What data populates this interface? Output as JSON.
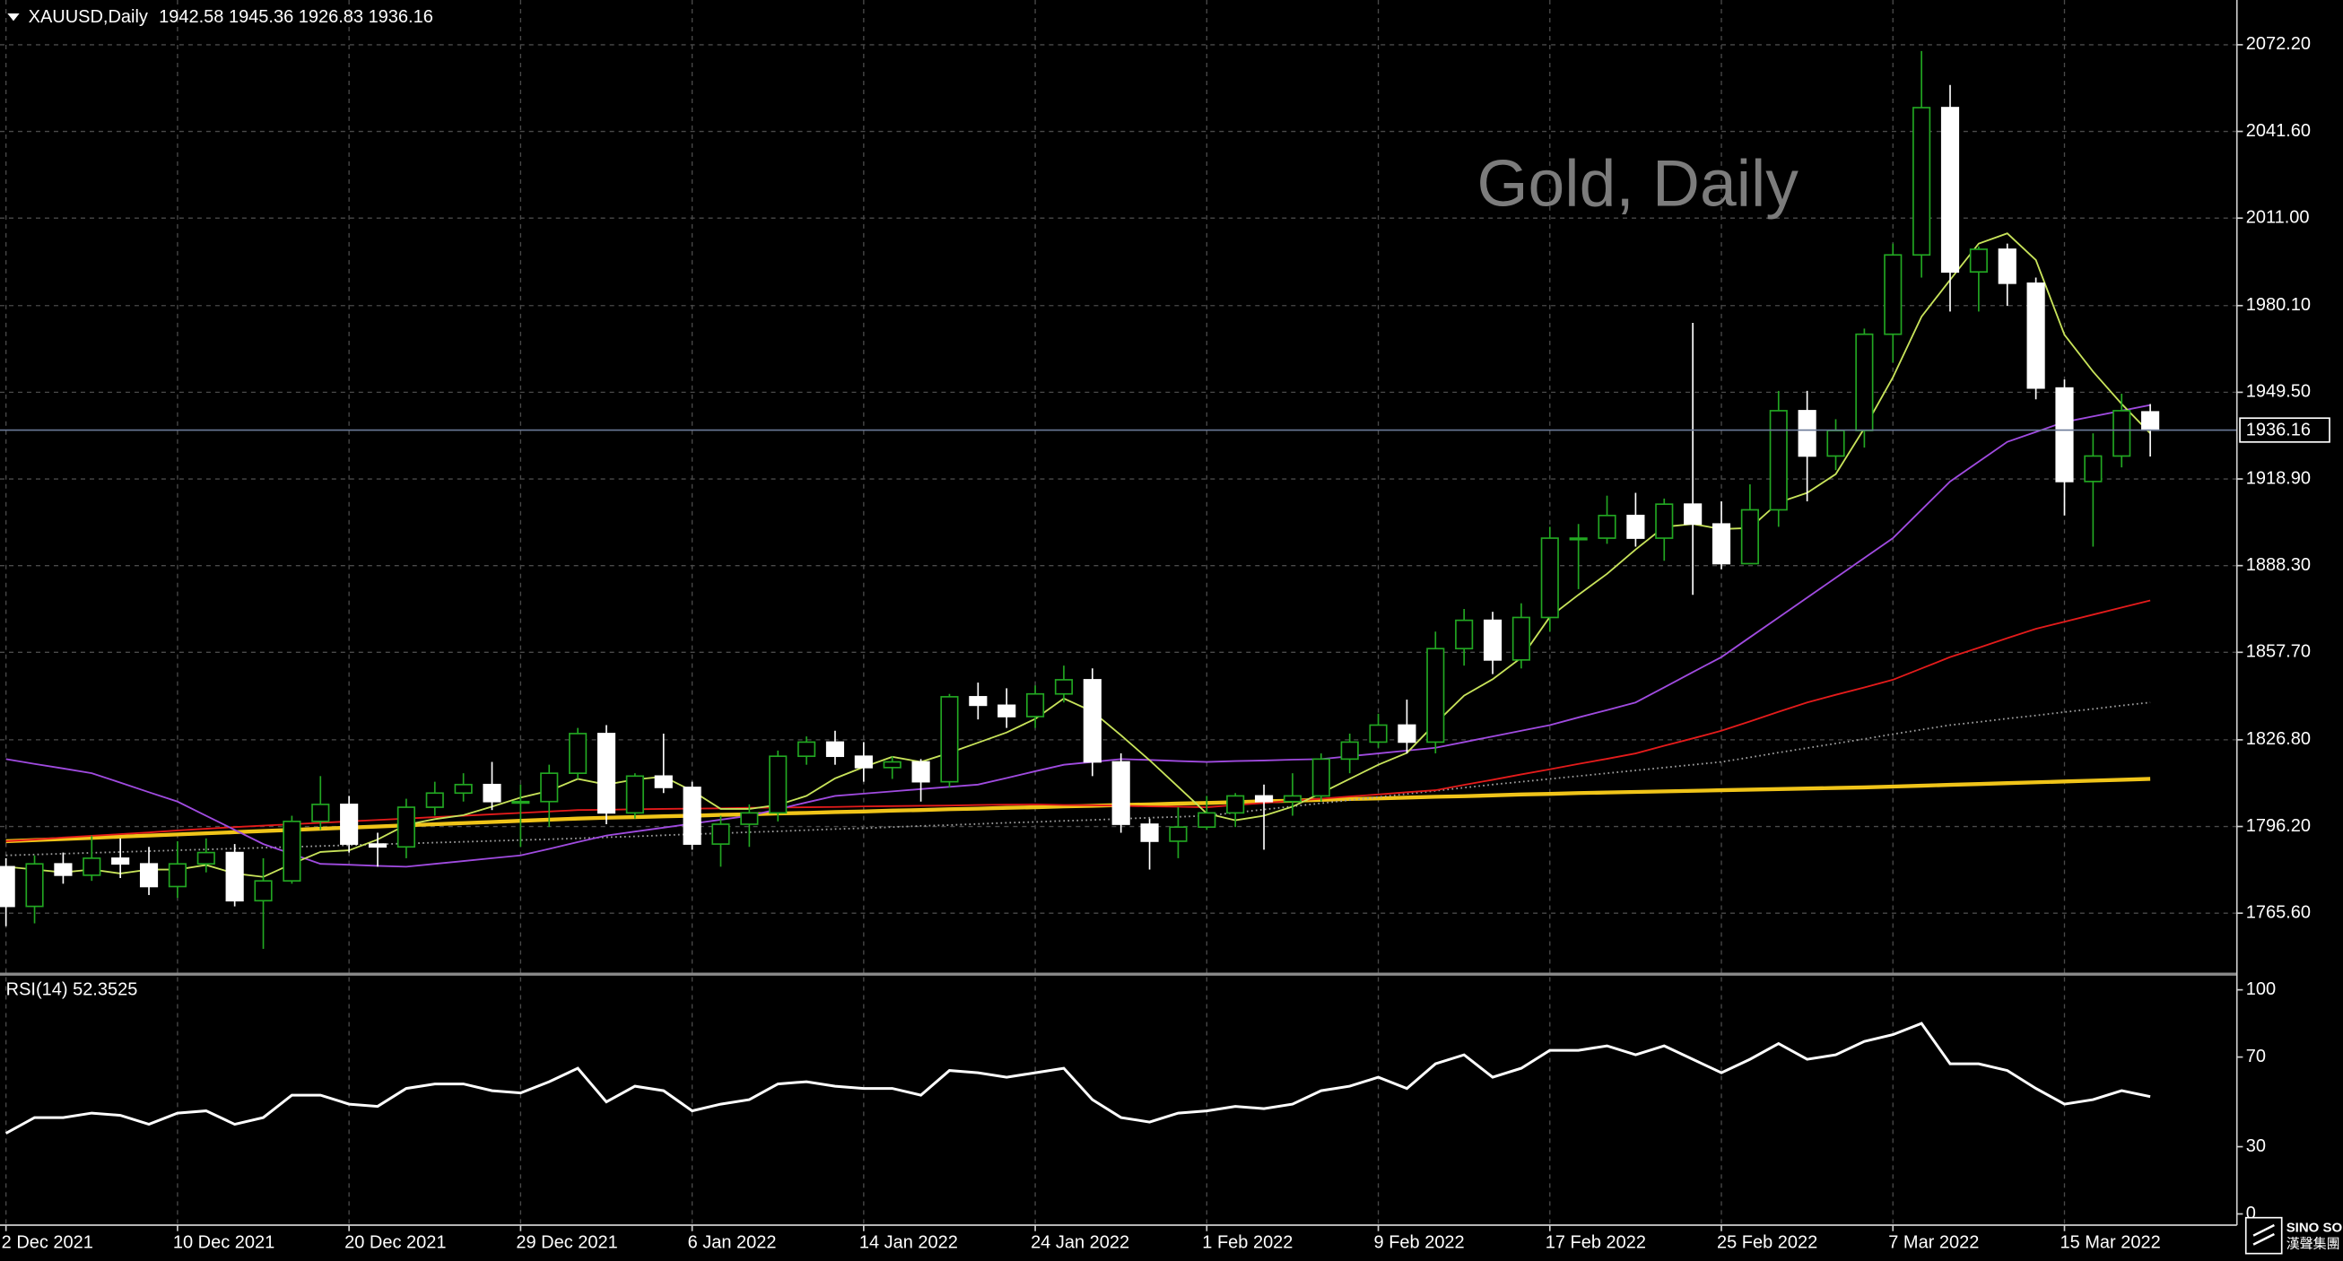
{
  "chart_data": [
    {
      "type": "candlestick",
      "title": "Gold, Daily",
      "symbol": "XAUUSD,Daily",
      "categories": [
        "2 Dec 2021",
        null,
        null,
        null,
        null,
        null,
        "10 Dec 2021",
        null,
        null,
        null,
        null,
        null,
        "20 Dec 2021",
        null,
        null,
        null,
        null,
        null,
        "29 Dec 2021",
        null,
        null,
        null,
        null,
        null,
        "6 Jan 2022",
        null,
        null,
        null,
        null,
        null,
        "14 Jan 2022",
        null,
        null,
        null,
        null,
        null,
        "24 Jan 2022",
        null,
        null,
        null,
        null,
        null,
        "1 Feb 2022",
        null,
        null,
        null,
        null,
        null,
        "9 Feb 2022",
        null,
        null,
        null,
        null,
        null,
        "17 Feb 2022",
        null,
        null,
        null,
        null,
        null,
        "25 Feb 2022",
        null,
        null,
        null,
        null,
        null,
        "7 Mar 2022",
        null,
        null,
        null,
        null,
        null,
        "15 Mar 2022",
        null,
        null,
        null
      ],
      "open": [
        1782,
        1768,
        1783,
        1779,
        1785,
        1783,
        1775,
        1783,
        1787,
        1770,
        1777,
        1798,
        1804,
        1790,
        1789,
        1803,
        1808,
        1811,
        1805,
        1805,
        1815,
        1829,
        1801,
        1814,
        1810,
        1790,
        1797,
        1801,
        1821,
        1826,
        1821,
        1817,
        1819,
        1812,
        1842,
        1839,
        1835,
        1843,
        1848,
        1819,
        1797,
        1791,
        1796,
        1801,
        1807,
        1805,
        1807,
        1820,
        1826,
        1832,
        1826,
        1859,
        1869,
        1855,
        1870,
        1898,
        1898,
        1906,
        1898,
        1910,
        1903,
        1889,
        1908,
        1943,
        1927,
        1936,
        1970,
        1998,
        2050,
        1992,
        2000,
        1988,
        1951,
        1918,
        1927,
        1942.58
      ],
      "high": [
        1785,
        1786,
        1787,
        1793,
        1792,
        1789,
        1791,
        1792,
        1790,
        1785,
        1800,
        1814,
        1807,
        1794,
        1806,
        1812,
        1815,
        1819,
        1811,
        1818,
        1831,
        1832,
        1815,
        1829,
        1812,
        1800,
        1804,
        1823,
        1828,
        1830,
        1826,
        1821,
        1820,
        1843,
        1847,
        1845,
        1846,
        1853,
        1852,
        1822,
        1799,
        1803,
        1807,
        1808,
        1811,
        1815,
        1822,
        1829,
        1836,
        1841,
        1865,
        1873,
        1872,
        1875,
        1902,
        1903,
        1913,
        1914,
        1912,
        1974,
        1911,
        1917,
        1950,
        1950,
        1940,
        1972,
        2002,
        2070,
        2058,
        2001,
        2002,
        1990,
        1954,
        1935,
        1949,
        1945.36
      ],
      "low": [
        1761,
        1762,
        1776,
        1777,
        1778,
        1772,
        1771,
        1780,
        1768,
        1753,
        1776,
        1795,
        1787,
        1782,
        1785,
        1800,
        1805,
        1802,
        1789,
        1796,
        1813,
        1797,
        1799,
        1808,
        1788,
        1782,
        1789,
        1798,
        1818,
        1818,
        1812,
        1813,
        1805,
        1810,
        1834,
        1831,
        1831,
        1840,
        1814,
        1794,
        1781,
        1785,
        1795,
        1796,
        1788,
        1800,
        1805,
        1815,
        1824,
        1822,
        1822,
        1853,
        1850,
        1852,
        1865,
        1880,
        1896,
        1895,
        1890,
        1878,
        1887,
        1889,
        1902,
        1911,
        1922,
        1930,
        1960,
        1990,
        1978,
        1978,
        1980,
        1947,
        1906,
        1895,
        1923,
        1926.83
      ],
      "close": [
        1768,
        1783,
        1779,
        1785,
        1783,
        1775,
        1783,
        1787,
        1770,
        1777,
        1798,
        1804,
        1790,
        1789,
        1803,
        1808,
        1811,
        1805,
        1805,
        1815,
        1829,
        1801,
        1814,
        1810,
        1790,
        1797,
        1801,
        1821,
        1826,
        1821,
        1817,
        1819,
        1812,
        1842,
        1839,
        1835,
        1843,
        1848,
        1819,
        1797,
        1791,
        1796,
        1801,
        1807,
        1805,
        1807,
        1820,
        1826,
        1832,
        1826,
        1859,
        1869,
        1855,
        1870,
        1898,
        1898,
        1906,
        1898,
        1910,
        1903,
        1889,
        1908,
        1943,
        1927,
        1936,
        1970,
        1998,
        2050,
        1992,
        2000,
        1988,
        1951,
        1918,
        1927,
        1943,
        1936.16
      ],
      "bull_color": "#22a722",
      "bear_color": "#ffffff",
      "series": [
        {
          "color": "#f0c419",
          "style": "thick",
          "values": [
            1791,
            1791.4,
            1791.8,
            1792.2,
            1792.6,
            1793,
            1793.4,
            1793.8,
            1794.2,
            1794.6,
            1795,
            1795.4,
            1795.8,
            1796.2,
            1796.6,
            1797,
            1797.4,
            1797.8,
            1798.2,
            1798.6,
            1799,
            1799.3,
            1799.5,
            1799.8,
            1800,
            1800.3,
            1800.5,
            1800.8,
            1801,
            1801.3,
            1801.5,
            1801.8,
            1802,
            1802.3,
            1802.5,
            1802.8,
            1803,
            1803.3,
            1803.5,
            1803.8,
            1804,
            1804.3,
            1804.5,
            1804.8,
            1805.1,
            1805.3,
            1805.6,
            1805.9,
            1806.1,
            1806.4,
            1806.7,
            1806.9,
            1807.2,
            1807.5,
            1807.7,
            1808,
            1808.2,
            1808.4,
            1808.6,
            1808.8,
            1809,
            1809.2,
            1809.4,
            1809.6,
            1809.8,
            1810,
            1810.3,
            1810.6,
            1810.9,
            1811.2,
            1811.5,
            1811.8,
            1812.1,
            1812.4,
            1812.7,
            1813
          ]
        },
        {
          "color": "#a0a0a0",
          "style": "dotted",
          "values": [
            1786,
            1786.3,
            1786.6,
            1786.9,
            1787.2,
            1787.5,
            1787.8,
            1788.1,
            1788.4,
            1788.7,
            1789,
            1789.3,
            1789.6,
            1789.9,
            1790.2,
            1790.5,
            1790.8,
            1791.1,
            1791.4,
            1791.7,
            1792,
            1792.4,
            1792.7,
            1793.1,
            1793.5,
            1793.8,
            1794.2,
            1794.5,
            1794.9,
            1795.3,
            1795.6,
            1796,
            1796.4,
            1796.7,
            1797.1,
            1797.5,
            1797.8,
            1798.2,
            1798.5,
            1798.9,
            1799.3,
            1799.6,
            1800,
            1801.1,
            1802.2,
            1803.3,
            1804.4,
            1805.5,
            1806.6,
            1807.7,
            1808.8,
            1809.9,
            1811,
            1812,
            1813,
            1814,
            1815,
            1816,
            1817,
            1818,
            1819,
            1820.6,
            1822.3,
            1823.9,
            1825.5,
            1827.1,
            1828.8,
            1830.4,
            1832,
            1833.1,
            1834.3,
            1835.4,
            1836.6,
            1837.7,
            1838.9,
            1840
          ]
        },
        {
          "color": "#e41b1b",
          "style": "solid",
          "values": [
            1791,
            1791.6,
            1792.3,
            1792.9,
            1793.5,
            1794.1,
            1794.8,
            1795.4,
            1796,
            1796.5,
            1797,
            1797.5,
            1798,
            1798.5,
            1799,
            1799.5,
            1800,
            1800.5,
            1801,
            1801.5,
            1802,
            1802.1,
            1802.3,
            1802.4,
            1802.5,
            1802.6,
            1802.8,
            1802.9,
            1803,
            1803.1,
            1803.3,
            1803.4,
            1803.5,
            1803.6,
            1803.8,
            1803.9,
            1804,
            1803.8,
            1803.7,
            1803.5,
            1803.3,
            1803.2,
            1803,
            1803.8,
            1804.5,
            1805.3,
            1806,
            1806.8,
            1807.5,
            1808.3,
            1809,
            1810.9,
            1812.7,
            1814.6,
            1816.4,
            1818.3,
            1820.1,
            1822,
            1824.7,
            1827.3,
            1830,
            1833.3,
            1836.7,
            1840,
            1842.7,
            1845.3,
            1848,
            1852,
            1856,
            1859.3,
            1862.7,
            1866,
            1868.5,
            1871,
            1873.5,
            1876
          ]
        },
        {
          "color": "#a04be0",
          "style": "solid",
          "values": [
            1820,
            1818.3,
            1816.7,
            1815,
            1811.7,
            1808.3,
            1805,
            1800,
            1795,
            1790,
            1786.5,
            1783,
            1782.7,
            1782.3,
            1782,
            1783,
            1784,
            1785,
            1786,
            1788.3,
            1790.7,
            1793,
            1794.4,
            1795.8,
            1797.2,
            1798.6,
            1800,
            1802.3,
            1804.7,
            1807,
            1807.8,
            1808.6,
            1809.4,
            1810.2,
            1811,
            1813.3,
            1815.7,
            1818,
            1819,
            1820,
            1819.7,
            1819.3,
            1819,
            1819.3,
            1819.5,
            1819.8,
            1820,
            1821,
            1822,
            1823,
            1824,
            1826,
            1828,
            1830,
            1832,
            1834.7,
            1837.3,
            1840,
            1845.3,
            1850.7,
            1856,
            1863,
            1870,
            1877,
            1884,
            1891,
            1898,
            1908,
            1918,
            1925,
            1932,
            1935.5,
            1939,
            1941,
            1943,
            1945
          ]
        },
        {
          "color": "#c8e35a",
          "style": "solid",
          "values": [
            1782,
            1781,
            1780,
            1781,
            1779.6,
            1781,
            1781,
            1782.6,
            1779.6,
            1778.4,
            1783,
            1787.2,
            1787.8,
            1791.6,
            1796.8,
            1798.8,
            1800.2,
            1803.2,
            1806.4,
            1808.8,
            1813,
            1811,
            1812.8,
            1813.8,
            1808.8,
            1802.4,
            1802.4,
            1803.8,
            1807,
            1813.2,
            1817.2,
            1820.8,
            1819,
            1822.2,
            1825.8,
            1829.4,
            1834.2,
            1841.4,
            1836.8,
            1828.4,
            1819.6,
            1810.2,
            1800.8,
            1798.4,
            1800,
            1803.2,
            1808,
            1813,
            1818,
            1822.2,
            1832.6,
            1842.4,
            1848.2,
            1855.8,
            1870.2,
            1878,
            1885.4,
            1894,
            1902,
            1903,
            1901.2,
            1901.6,
            1910.6,
            1914,
            1920.6,
            1936.8,
            1954.8,
            1976.2,
            1989.2,
            2002,
            2005.6,
            1996.2,
            1969.8,
            1956.8,
            1945.4,
            1935
          ]
        }
      ],
      "ylim": [
        1744.6,
        2088.0
      ],
      "yticks": [
        {
          "value": 2072.2,
          "label": "2072.20"
        },
        {
          "value": 2041.6,
          "label": "2041.60"
        },
        {
          "value": 2011,
          "label": "2011.00"
        },
        {
          "value": 1980.1,
          "label": "1980.10"
        },
        {
          "value": 1949.5,
          "label": "1949.50"
        },
        {
          "value": 1918.9,
          "label": "1918.90"
        },
        {
          "value": 1888.3,
          "label": "1888.30"
        },
        {
          "value": 1857.7,
          "label": "1857.70"
        },
        {
          "value": 1826.8,
          "label": "1826.80"
        },
        {
          "value": 1796.2,
          "label": "1796.20"
        },
        {
          "value": 1765.6,
          "label": "1765.60"
        }
      ],
      "grid": true,
      "last_price_line": true
    },
    {
      "type": "line",
      "title": "RSI(14)",
      "color": "#ffffff",
      "values": [
        36,
        43,
        43,
        45,
        44,
        40,
        45,
        46,
        40,
        43,
        53,
        53,
        49,
        48,
        56,
        58,
        58,
        55,
        54,
        59,
        65,
        50,
        57,
        55,
        46,
        49,
        51,
        58,
        59,
        57,
        56,
        56,
        53,
        64,
        63,
        61,
        63,
        65,
        51,
        43,
        41,
        45,
        46,
        48,
        47,
        49,
        55,
        57,
        61,
        56,
        67,
        71,
        61,
        65,
        73,
        73,
        75,
        71,
        75,
        69,
        63,
        69,
        76,
        69,
        71,
        77,
        80,
        85,
        67,
        67,
        64,
        56,
        49,
        51,
        55,
        52.3525
      ],
      "ylim": [
        -5,
        105
      ],
      "yticks": [
        100,
        70,
        30,
        0
      ]
    }
  ],
  "logo": {
    "name": "SINO SOUND",
    "subtitle": "漢聲集團"
  }
}
